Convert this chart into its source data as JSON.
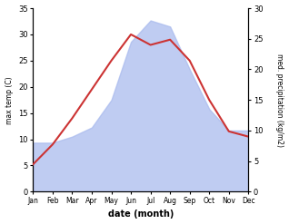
{
  "months": [
    "Jan",
    "Feb",
    "Mar",
    "Apr",
    "May",
    "Jun",
    "Jul",
    "Aug",
    "Sep",
    "Oct",
    "Nov",
    "Dec"
  ],
  "temperature": [
    5.2,
    9.0,
    14.0,
    19.5,
    25.0,
    30.0,
    28.0,
    29.0,
    25.0,
    17.5,
    11.5,
    10.5
  ],
  "precipitation": [
    8.0,
    8.0,
    9.0,
    10.5,
    15.0,
    24.5,
    28.0,
    27.0,
    20.0,
    13.5,
    10.0,
    10.0
  ],
  "temp_ylim": [
    0,
    35
  ],
  "precip_ylim": [
    0,
    30
  ],
  "temp_yticks": [
    0,
    5,
    10,
    15,
    20,
    25,
    30,
    35
  ],
  "precip_yticks": [
    0,
    5,
    10,
    15,
    20,
    25,
    30
  ],
  "ylabel_left": "max temp (C)",
  "ylabel_right": "med. precipitation (kg/m2)",
  "xlabel": "date (month)",
  "line_color": "#cc3333",
  "fill_color": "#aabbee",
  "fill_alpha": 0.75,
  "background_color": "#ffffff",
  "line_width": 1.5
}
